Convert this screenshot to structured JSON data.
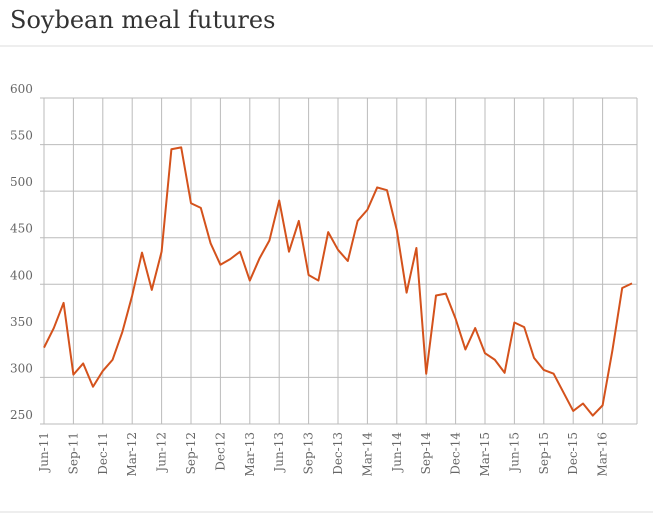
{
  "chart_data": {
    "type": "line",
    "title": "Soybean meal futures",
    "categories": [
      "Jun-11",
      null,
      null,
      "Sep-11",
      null,
      null,
      "Dec-11",
      null,
      null,
      "Mar-12",
      null,
      null,
      "Jun-12",
      null,
      null,
      "Sep-12",
      null,
      null,
      "Dec12",
      null,
      null,
      "Mar-13",
      null,
      null,
      "Jun-13",
      null,
      null,
      "Sep-13",
      null,
      null,
      "Dec-13",
      null,
      null,
      "Mar-14",
      null,
      null,
      "Jun-14",
      null,
      null,
      "Sep-14",
      null,
      null,
      "Dec-14",
      null,
      null,
      "Mar-15",
      null,
      null,
      "Jun-15",
      null,
      null,
      "Sep-15",
      null,
      null,
      "Dec-15",
      null,
      null,
      "Mar-16",
      null,
      null,
      null
    ],
    "series": [
      {
        "color": "#d4521c",
        "values": [
          332,
          353,
          380,
          303,
          315,
          290,
          307,
          319,
          349,
          388,
          434,
          394,
          435,
          545,
          547,
          487,
          482,
          444,
          421,
          427,
          435,
          404,
          428,
          447,
          490,
          435,
          468,
          410,
          404,
          456,
          437,
          425,
          468,
          480,
          504,
          501,
          458,
          391,
          439,
          304,
          388,
          390,
          363,
          330,
          353,
          326,
          319,
          305,
          359,
          354,
          321,
          308,
          304,
          284,
          264,
          272,
          259,
          270,
          329,
          396,
          401
        ]
      }
    ],
    "ylim": [
      250,
      600
    ],
    "yticks": [
      250,
      300,
      350,
      400,
      450,
      500,
      550,
      600
    ],
    "grid": true
  }
}
